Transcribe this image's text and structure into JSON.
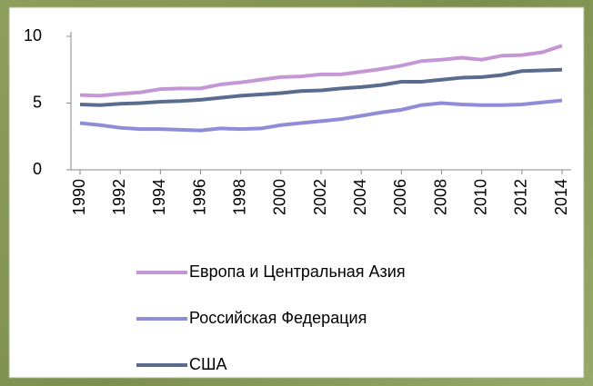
{
  "chart_data": {
    "type": "line",
    "x": [
      1990,
      1991,
      1992,
      1993,
      1994,
      1995,
      1996,
      1997,
      1998,
      1999,
      2000,
      2001,
      2002,
      2003,
      2004,
      2005,
      2006,
      2007,
      2008,
      2009,
      2010,
      2011,
      2012,
      2013,
      2014
    ],
    "xlim": [
      1990,
      2014
    ],
    "xticks": [
      1990,
      1992,
      1994,
      1996,
      1998,
      2000,
      2002,
      2004,
      2006,
      2008,
      2010,
      2012,
      2014
    ],
    "ylim": [
      0,
      10
    ],
    "yticks": [
      0,
      5,
      10
    ],
    "grid": false,
    "series": [
      {
        "name": "Европа и Центральная Азия",
        "color": "#c596d6",
        "values": [
          5.6,
          5.55,
          5.7,
          5.8,
          6.05,
          6.1,
          6.1,
          6.4,
          6.55,
          6.75,
          6.95,
          7.0,
          7.15,
          7.15,
          7.35,
          7.55,
          7.8,
          8.15,
          8.25,
          8.4,
          8.25,
          8.55,
          8.6,
          8.8,
          9.3
        ]
      },
      {
        "name": "Российская Федерация",
        "color": "#8f8cd8",
        "values": [
          3.5,
          3.35,
          3.15,
          3.05,
          3.05,
          3.0,
          2.95,
          3.1,
          3.05,
          3.1,
          3.35,
          3.5,
          3.65,
          3.8,
          4.05,
          4.3,
          4.5,
          4.85,
          5.0,
          4.9,
          4.85,
          4.85,
          4.9,
          5.05,
          5.2
        ]
      },
      {
        "name": "США",
        "color": "#596c8e",
        "values": [
          4.9,
          4.85,
          4.95,
          5.0,
          5.1,
          5.15,
          5.25,
          5.4,
          5.55,
          5.65,
          5.75,
          5.9,
          5.95,
          6.1,
          6.2,
          6.35,
          6.6,
          6.6,
          6.75,
          6.9,
          6.95,
          7.1,
          7.4,
          7.45,
          7.5
        ]
      }
    ]
  }
}
